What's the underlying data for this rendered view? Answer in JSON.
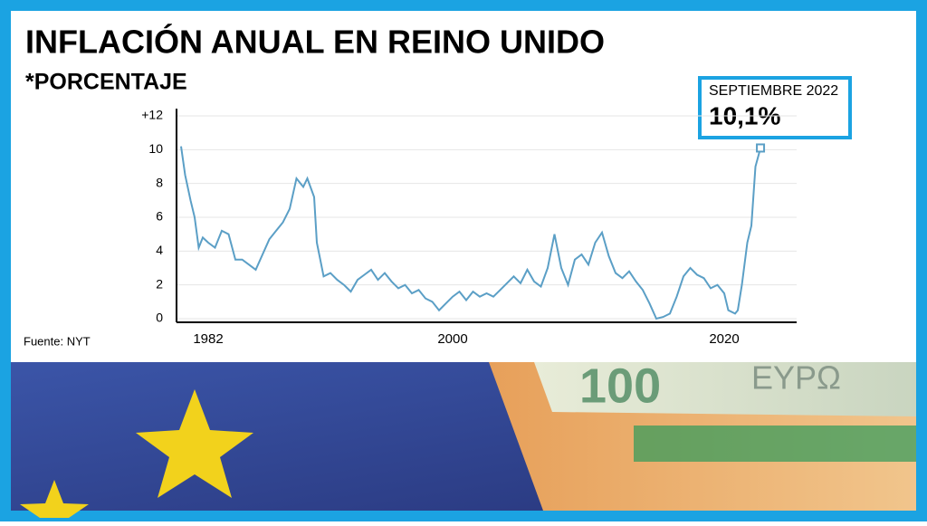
{
  "chart_data": {
    "type": "line",
    "title": "INFLACIÓN ANUAL EN REINO UNIDO",
    "subtitle": "*PORCENTAJE",
    "source": "Fuente: NYT",
    "annotation": {
      "text": "SEPTIEMBRE 2022",
      "value": 10.1,
      "label": "10,1%"
    },
    "color": "#5b9fc6",
    "grid": true,
    "x": [
      1980,
      1980.3,
      1980.7,
      1981,
      1981.3,
      1981.6,
      1982,
      1982.5,
      1983,
      1983.5,
      1984,
      1984.5,
      1985,
      1985.5,
      1986,
      1986.5,
      1987,
      1987.5,
      1988,
      1988.5,
      1989,
      1989.3,
      1989.8,
      1990,
      1990.5,
      1991,
      1991.5,
      1992,
      1992.5,
      1993,
      1993.5,
      1994,
      1994.5,
      1995,
      1995.5,
      1996,
      1996.5,
      1997,
      1997.5,
      1998,
      1998.5,
      1999,
      1999.5,
      2000,
      2000.5,
      2001,
      2001.5,
      2002,
      2002.5,
      2003,
      2003.5,
      2004,
      2004.5,
      2005,
      2005.5,
      2006,
      2006.5,
      2007,
      2007.5,
      2008,
      2008.5,
      2009,
      2009.5,
      2010,
      2010.5,
      2011,
      2011.5,
      2012,
      2012.5,
      2013,
      2013.5,
      2014,
      2014.5,
      2015,
      2015.5,
      2016,
      2016.5,
      2017,
      2017.5,
      2018,
      2018.5,
      2019,
      2019.5,
      2020,
      2020.3,
      2020.8,
      2021,
      2021.3,
      2021.7,
      2022,
      2022.3,
      2022.67
    ],
    "values": [
      10.2,
      8.5,
      7,
      6,
      4.2,
      4.8,
      4.5,
      4.2,
      5.2,
      5.0,
      3.5,
      3.5,
      3.2,
      2.9,
      3.8,
      4.7,
      5.2,
      5.7,
      6.5,
      8.3,
      7.8,
      8.3,
      7.2,
      4.5,
      2.5,
      2.7,
      2.3,
      2.0,
      1.6,
      2.3,
      2.6,
      2.9,
      2.3,
      2.7,
      2.2,
      1.8,
      2.0,
      1.5,
      1.7,
      1.2,
      1.0,
      0.5,
      0.9,
      1.3,
      1.6,
      1.1,
      1.6,
      1.3,
      1.5,
      1.3,
      1.7,
      2.1,
      2.5,
      2.1,
      2.9,
      2.2,
      1.9,
      3.0,
      5.0,
      3.0,
      2.0,
      3.5,
      3.8,
      3.2,
      4.5,
      5.1,
      3.7,
      2.7,
      2.4,
      2.8,
      2.2,
      1.7,
      0.9,
      0,
      0.1,
      0.3,
      1.3,
      2.5,
      3.0,
      2.6,
      2.4,
      1.8,
      2.0,
      1.5,
      0.5,
      0.3,
      0.5,
      2.0,
      4.5,
      5.5,
      9.0,
      10.1
    ],
    "xlim": [
      1980,
      2023
    ],
    "xticks": [
      1982,
      2000,
      2020
    ],
    "ylim": [
      0,
      12
    ],
    "yticks": [
      0,
      2,
      4,
      6,
      8,
      10,
      {
        "value": 12,
        "label": "+12"
      }
    ]
  }
}
